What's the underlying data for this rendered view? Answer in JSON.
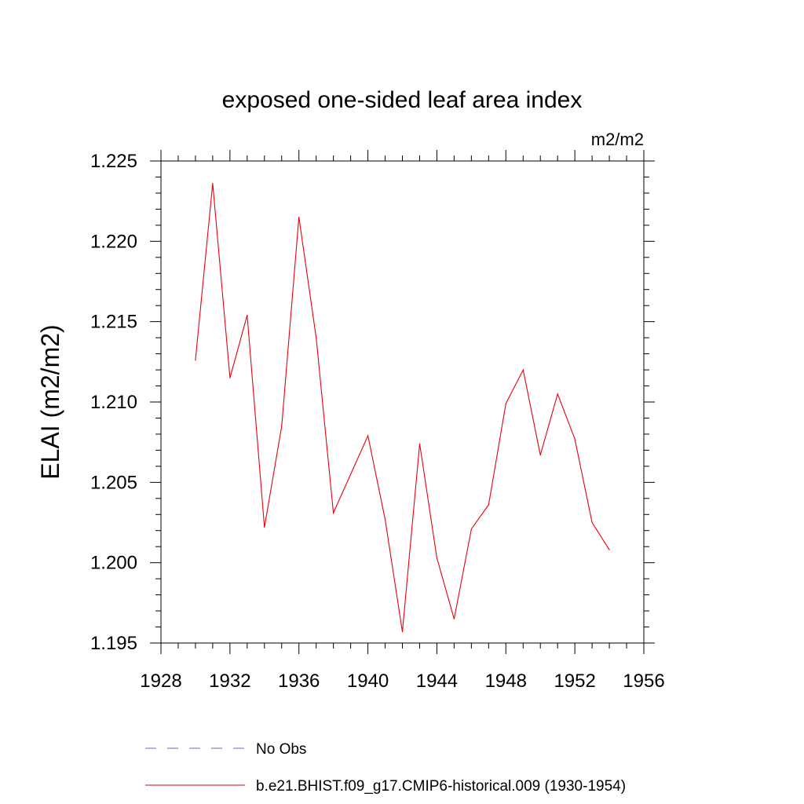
{
  "chart_data": {
    "type": "line",
    "title": "exposed one-sided leaf area index",
    "units_label": "m2/m2",
    "ylabel": "ELAI  (m2/m2)",
    "xlabel": "",
    "xlim": [
      1928,
      1956
    ],
    "ylim": [
      1.195,
      1.225
    ],
    "x_ticks": [
      "1928",
      "1932",
      "1936",
      "1940",
      "1944",
      "1948",
      "1952",
      "1956"
    ],
    "y_ticks": [
      "1.195",
      "1.200",
      "1.205",
      "1.210",
      "1.215",
      "1.220",
      "1.225"
    ],
    "grid": false,
    "legend_position": "bottom",
    "series": [
      {
        "name": "No Obs",
        "color": "#6b5fd0",
        "dash": "dashed",
        "x": [],
        "y": []
      },
      {
        "name": "b.e21.BHIST.f09_g17.CMIP6-historical.009 (1930-1954)",
        "color": "#e8000b",
        "dash": "solid",
        "x": [
          1930,
          1931,
          1932,
          1933,
          1934,
          1935,
          1936,
          1937,
          1938,
          1939,
          1940,
          1941,
          1942,
          1943,
          1944,
          1945,
          1946,
          1947,
          1948,
          1949,
          1950,
          1951,
          1952,
          1953,
          1954
        ],
        "y": [
          1.2126,
          1.2236,
          1.2115,
          1.2154,
          1.2022,
          1.2085,
          1.2215,
          1.214,
          1.2031,
          1.2055,
          1.2079,
          1.2027,
          1.1957,
          1.2074,
          1.2003,
          1.1965,
          1.2021,
          1.2036,
          1.2099,
          1.212,
          1.2067,
          1.2105,
          1.2077,
          1.2025,
          1.2008
        ]
      }
    ]
  }
}
